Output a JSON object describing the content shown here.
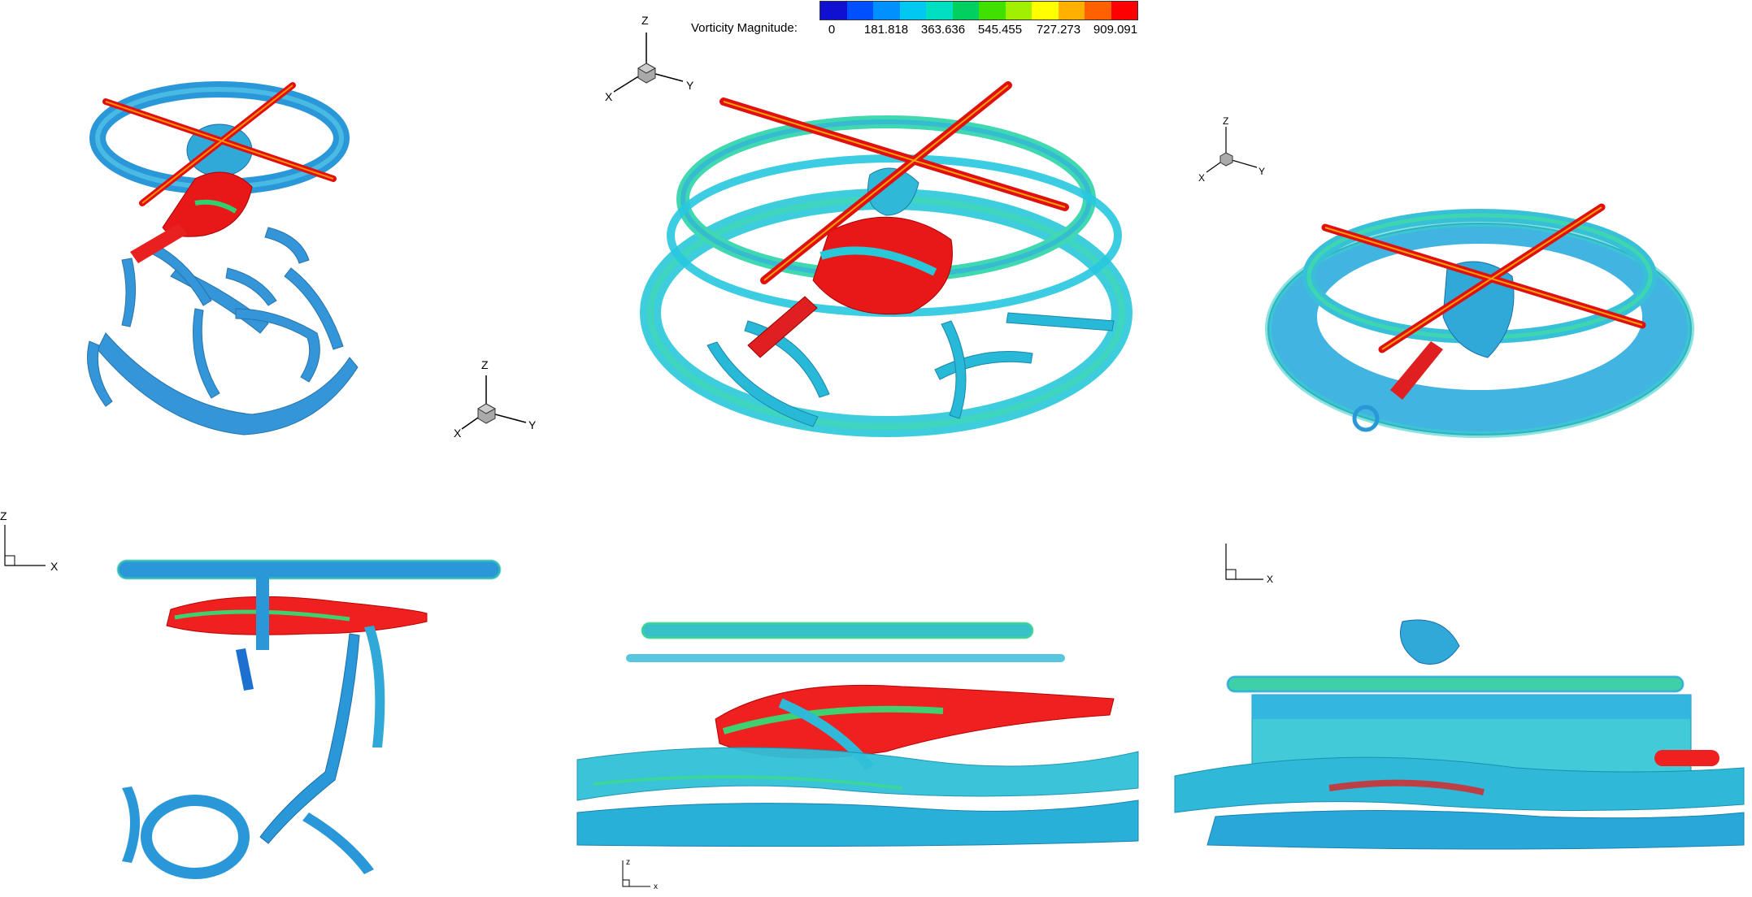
{
  "legend": {
    "title": "Vorticity Magnitude:",
    "ticks": [
      "0",
      "181.818",
      "363.636",
      "545.455",
      "727.273",
      "909.091"
    ],
    "colors": [
      "#1010d0",
      "#0050ff",
      "#0090ff",
      "#00c8f0",
      "#00e0c0",
      "#00d060",
      "#40e000",
      "#a0f000",
      "#ffff00",
      "#ffb000",
      "#ff6000",
      "#ff0000"
    ]
  },
  "axes": {
    "iso": {
      "z": "Z",
      "x": "X",
      "y": "Y"
    },
    "side": {
      "z": "Z",
      "x": "X"
    },
    "side_small": {
      "z": "z",
      "x": "x"
    }
  },
  "panels": [
    {
      "name": "iso-view-steep",
      "view": "isometric"
    },
    {
      "name": "iso-view-medium",
      "view": "isometric"
    },
    {
      "name": "iso-view-ground",
      "view": "isometric"
    },
    {
      "name": "side-view-steep",
      "view": "side"
    },
    {
      "name": "side-view-medium",
      "view": "side"
    },
    {
      "name": "side-view-ground",
      "view": "side"
    }
  ],
  "palette": {
    "vortex_blue": "#2a9ee0",
    "vortex_cyan": "#28d0e0",
    "vortex_green": "#30d080",
    "blade_red": "#e01010",
    "fuselage_red": "#ee2020"
  }
}
